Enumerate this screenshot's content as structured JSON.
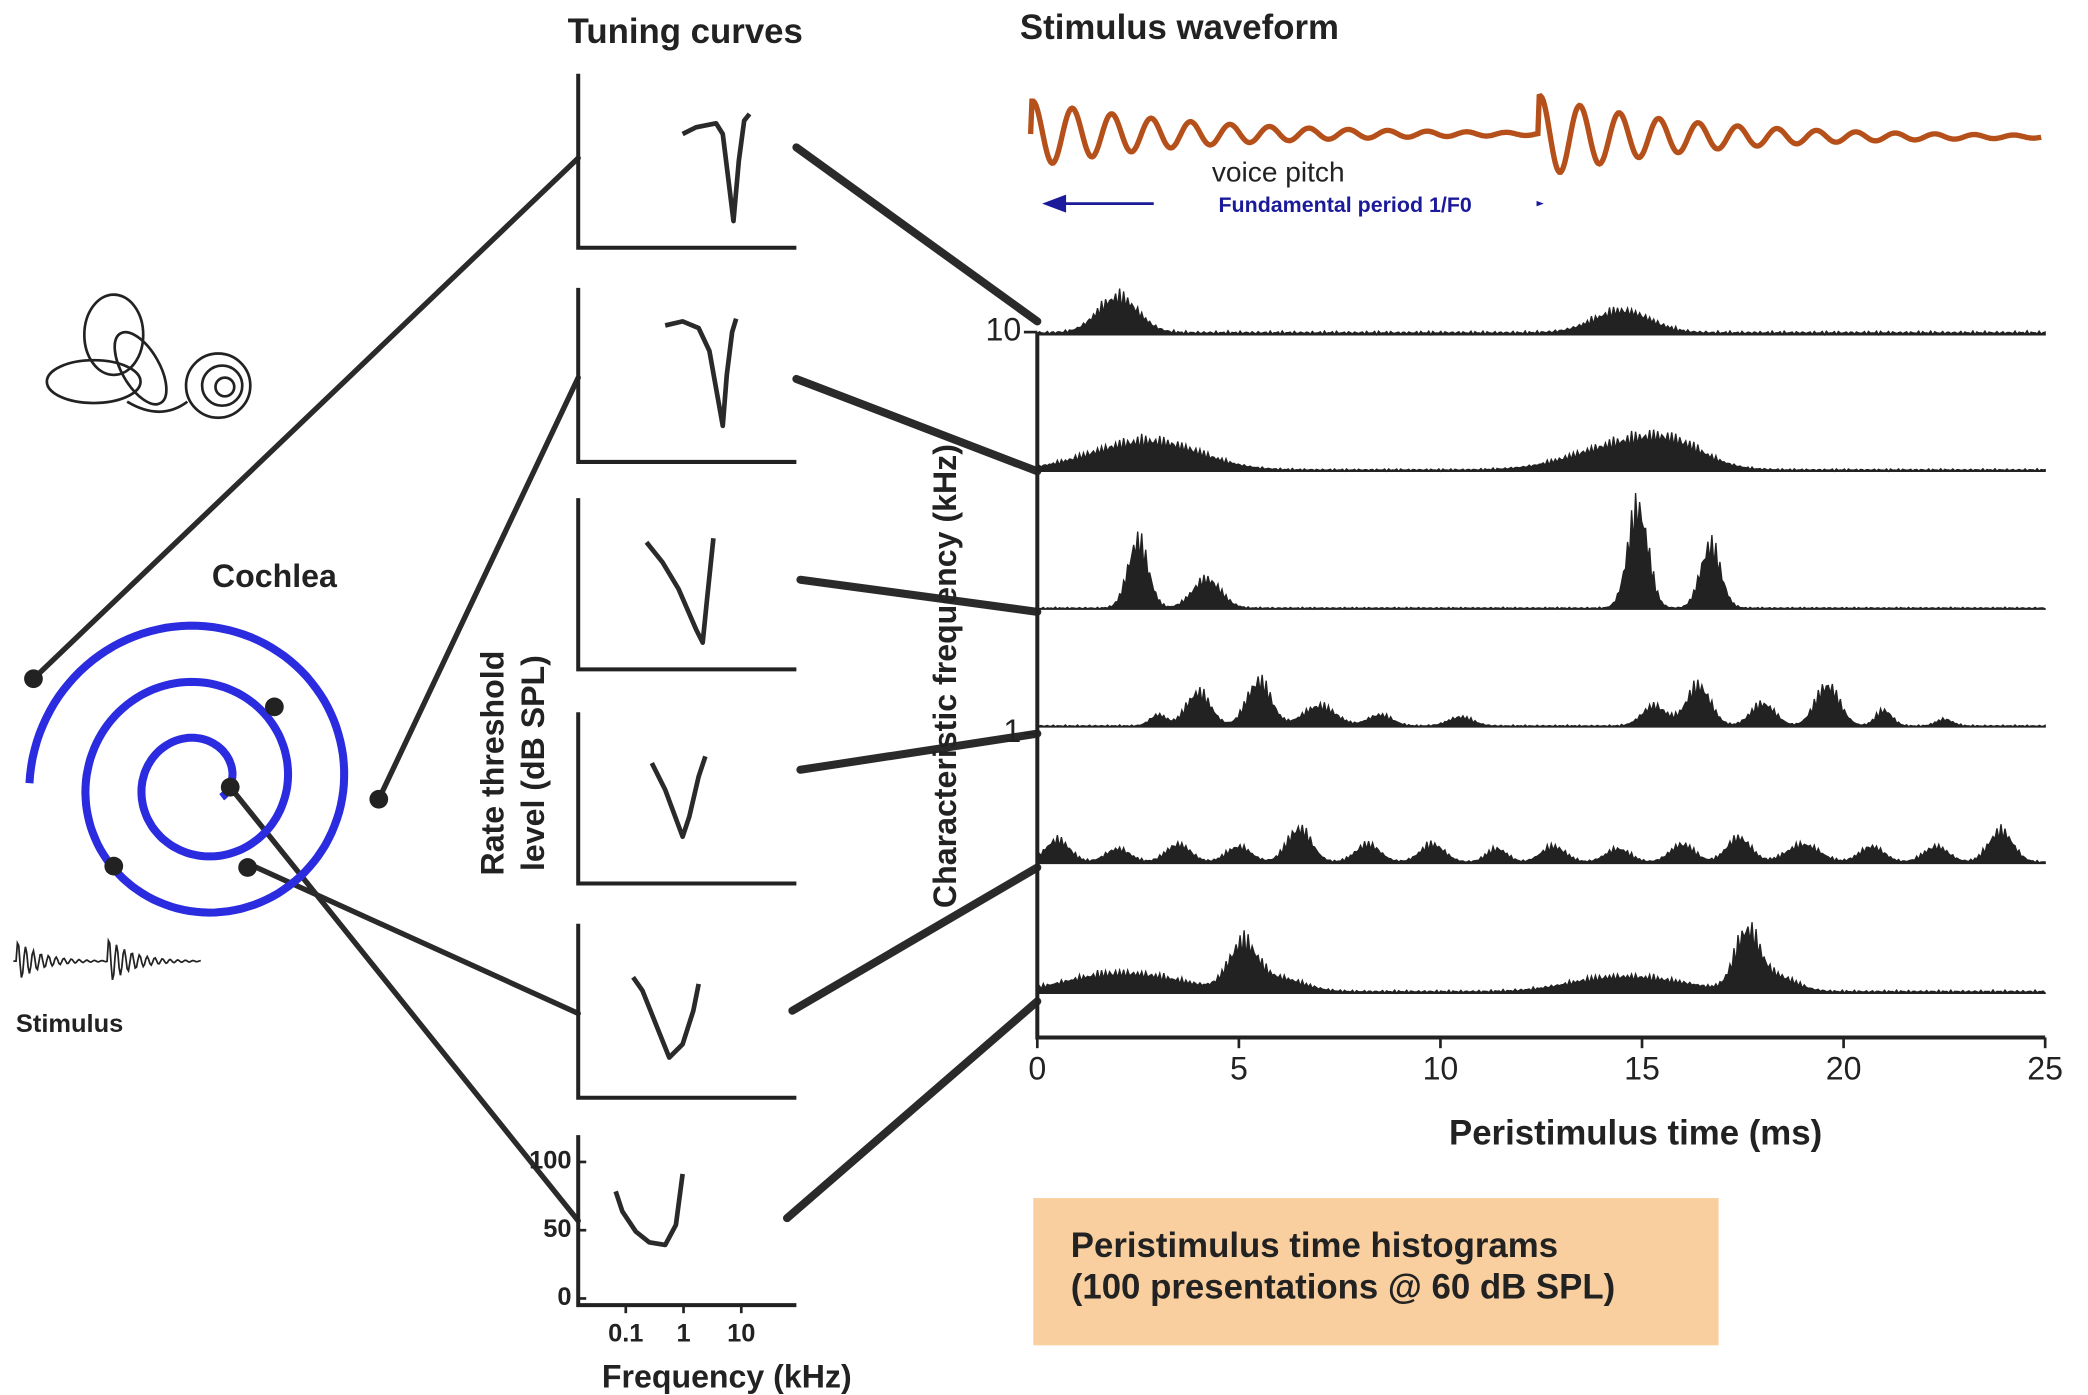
{
  "titles": {
    "tuning": "Tuning curves",
    "waveform": "Stimulus waveform"
  },
  "waveform": {
    "pitch_label": "voice pitch",
    "period_label": "Fundamental period 1/F0"
  },
  "cochlea": {
    "label": "Cochlea",
    "stimulus_label": "Stimulus"
  },
  "tuning_axis": {
    "ylabel": [
      "Rate threshold",
      "level (dB SPL)"
    ],
    "xlabel": "Frequency (kHz)",
    "ylim": [
      0,
      100
    ],
    "yticks": [
      0,
      50,
      100
    ],
    "xlim": [
      0.015,
      90
    ],
    "xticks": [
      0.1,
      1,
      10
    ],
    "log_x": true
  },
  "psth_axis": {
    "ylabel": "Characteristic frequency  (kHz)",
    "xlabel": "Peristimulus time (ms)",
    "xlim": [
      0,
      25
    ],
    "xticks": [
      0,
      5,
      10,
      15,
      20,
      25
    ],
    "ylim": [
      0.175,
      10
    ],
    "yticks": [
      1,
      10
    ],
    "log_y": true
  },
  "note": [
    "Peristimulus time histograms",
    "(100 presentations @ 60 dB SPL)"
  ]
}
